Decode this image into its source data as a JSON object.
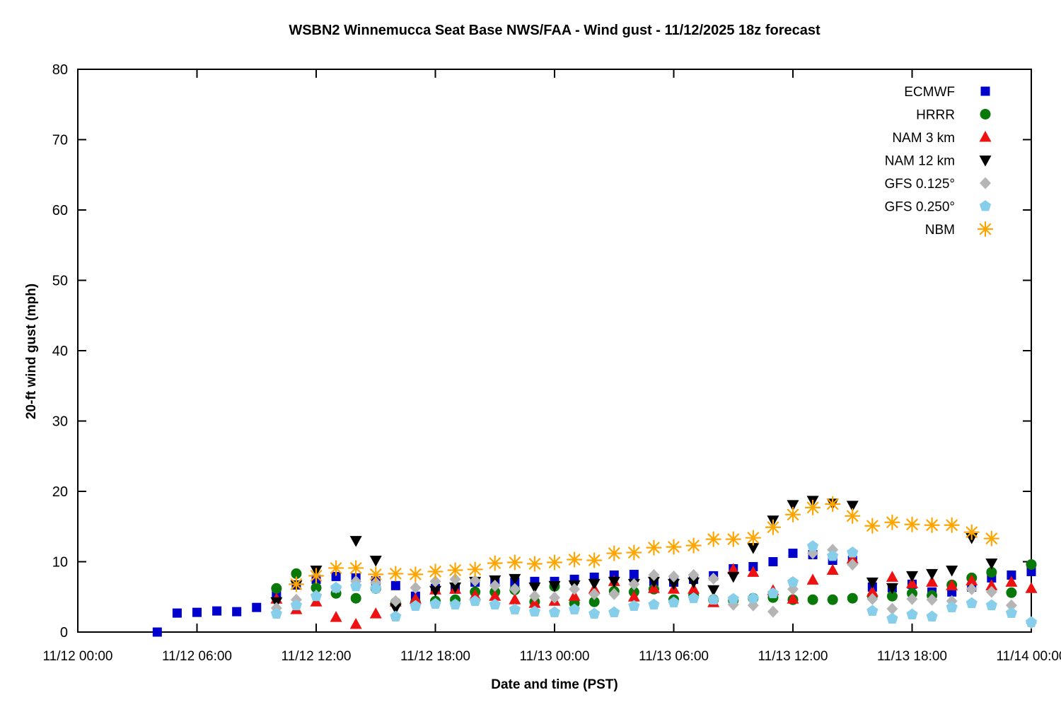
{
  "chart": {
    "title": "WSBN2 Winnemucca Seat Base NWS/FAA - Wind gust - 11/12/2025 18z forecast",
    "xlabel": "Date and time (PST)",
    "ylabel": "20-ft wind gust (mph)"
  },
  "chart_data": {
    "type": "scatter",
    "title": "WSBN2 Winnemucca Seat Base NWS/FAA - Wind gust - 11/12/2025 18z forecast",
    "xlabel": "Date and time (PST)",
    "ylabel": "20-ft wind gust (mph)",
    "x_unit_hours_since": "11/12 00:00 PST",
    "xlim": [
      0,
      48
    ],
    "ylim": [
      0,
      80
    ],
    "grid": false,
    "legend_position": "top-right-inside",
    "x_ticks": [
      {
        "hour": 0,
        "label": "11/12 00:00"
      },
      {
        "hour": 6,
        "label": "11/12 06:00"
      },
      {
        "hour": 12,
        "label": "11/12 12:00"
      },
      {
        "hour": 18,
        "label": "11/12 18:00"
      },
      {
        "hour": 24,
        "label": "11/13 00:00"
      },
      {
        "hour": 30,
        "label": "11/13 06:00"
      },
      {
        "hour": 36,
        "label": "11/13 12:00"
      },
      {
        "hour": 42,
        "label": "11/13 18:00"
      },
      {
        "hour": 48,
        "label": "11/14 00:00"
      }
    ],
    "y_ticks": [
      0,
      10,
      20,
      30,
      40,
      50,
      60,
      70,
      80
    ],
    "series": [
      {
        "name": "ECMWF",
        "marker": "square",
        "color": "#0000cc",
        "points": [
          [
            4,
            0
          ],
          [
            5,
            2.7
          ],
          [
            6,
            2.8
          ],
          [
            7,
            3.0
          ],
          [
            8,
            2.9
          ],
          [
            9,
            3.5
          ],
          [
            10,
            5.2
          ],
          [
            11,
            6.7
          ],
          [
            12,
            7.5
          ],
          [
            13,
            7.9
          ],
          [
            14,
            7.7
          ],
          [
            15,
            7.3
          ],
          [
            16,
            6.6
          ],
          [
            17,
            5.1
          ],
          [
            18,
            6.2
          ],
          [
            19,
            6.1
          ],
          [
            20,
            7.1
          ],
          [
            21,
            7.3
          ],
          [
            22,
            7.1
          ],
          [
            23,
            7.2
          ],
          [
            24,
            7.2
          ],
          [
            25,
            7.5
          ],
          [
            26,
            7.8
          ],
          [
            27,
            8.1
          ],
          [
            28,
            8.2
          ],
          [
            29,
            7.2
          ],
          [
            30,
            7.1
          ],
          [
            31,
            7.5
          ],
          [
            32,
            8.0
          ],
          [
            33,
            9.0
          ],
          [
            34,
            9.3
          ],
          [
            35,
            10.0
          ],
          [
            36,
            11.2
          ],
          [
            37,
            11.0
          ],
          [
            38,
            10.2
          ],
          [
            39,
            10.2
          ],
          [
            40,
            6.4
          ],
          [
            41,
            6.3
          ],
          [
            42,
            6.8
          ],
          [
            43,
            5.7
          ],
          [
            44,
            5.7
          ],
          [
            45,
            6.4
          ],
          [
            46,
            7.7
          ],
          [
            47,
            8.1
          ],
          [
            48,
            8.6
          ]
        ]
      },
      {
        "name": "HRRR",
        "marker": "circle",
        "color": "#087808",
        "points": [
          [
            10,
            6.2
          ],
          [
            11,
            8.3
          ],
          [
            12,
            6.3
          ],
          [
            13,
            5.5
          ],
          [
            14,
            4.8
          ],
          [
            15,
            6.2
          ],
          [
            16,
            4.2
          ],
          [
            17,
            4.2
          ],
          [
            18,
            4.4
          ],
          [
            19,
            4.6
          ],
          [
            20,
            5.7
          ],
          [
            21,
            5.7
          ],
          [
            22,
            6.0
          ],
          [
            23,
            4.3
          ],
          [
            24,
            6.5
          ],
          [
            25,
            4.1
          ],
          [
            26,
            4.3
          ],
          [
            27,
            5.8
          ],
          [
            28,
            5.7
          ],
          [
            29,
            6.1
          ],
          [
            30,
            4.6
          ],
          [
            31,
            5.2
          ],
          [
            32,
            4.6
          ],
          [
            33,
            4.5
          ],
          [
            34,
            4.8
          ],
          [
            35,
            4.9
          ],
          [
            36,
            4.6
          ],
          [
            37,
            4.6
          ],
          [
            38,
            4.6
          ],
          [
            39,
            4.8
          ],
          [
            40,
            5.1
          ],
          [
            41,
            5.1
          ],
          [
            42,
            5.5
          ],
          [
            43,
            5.2
          ],
          [
            44,
            6.7
          ],
          [
            45,
            7.7
          ],
          [
            46,
            8.5
          ],
          [
            47,
            5.6
          ],
          [
            48,
            9.6
          ]
        ]
      },
      {
        "name": "NAM 3 km",
        "marker": "triangle-up",
        "color": "#ee1111",
        "points": [
          [
            10,
            4.7
          ],
          [
            11,
            3.2
          ],
          [
            12,
            4.3
          ],
          [
            13,
            2.1
          ],
          [
            14,
            1.1
          ],
          [
            15,
            2.6
          ],
          [
            16,
            4.3
          ],
          [
            17,
            4.7
          ],
          [
            18,
            6.0
          ],
          [
            19,
            6.1
          ],
          [
            20,
            5.2
          ],
          [
            21,
            5.1
          ],
          [
            22,
            4.6
          ],
          [
            23,
            4.1
          ],
          [
            24,
            4.4
          ],
          [
            25,
            5.1
          ],
          [
            26,
            6.1
          ],
          [
            27,
            7.2
          ],
          [
            28,
            5.0
          ],
          [
            29,
            6.2
          ],
          [
            30,
            6.1
          ],
          [
            31,
            6.1
          ],
          [
            32,
            4.2
          ],
          [
            33,
            8.9
          ],
          [
            34,
            8.5
          ],
          [
            35,
            5.9
          ],
          [
            36,
            4.7
          ],
          [
            37,
            7.4
          ],
          [
            38,
            8.8
          ],
          [
            39,
            10.4
          ],
          [
            40,
            5.7
          ],
          [
            41,
            7.8
          ],
          [
            42,
            6.9
          ],
          [
            43,
            7.1
          ],
          [
            44,
            6.6
          ],
          [
            45,
            7.3
          ],
          [
            46,
            6.6
          ],
          [
            47,
            7.1
          ],
          [
            48,
            6.2
          ]
        ]
      },
      {
        "name": "NAM 12 km",
        "marker": "triangle-down",
        "color": "#000000",
        "points": [
          [
            10,
            4.3
          ],
          [
            11,
            6.7
          ],
          [
            12,
            8.8
          ],
          [
            14,
            13.0
          ],
          [
            15,
            10.2
          ],
          [
            16,
            3.4
          ],
          [
            18,
            5.9
          ],
          [
            19,
            6.4
          ],
          [
            20,
            7.2
          ],
          [
            21,
            7.4
          ],
          [
            22,
            7.6
          ],
          [
            23,
            6.4
          ],
          [
            24,
            6.6
          ],
          [
            25,
            6.7
          ],
          [
            26,
            6.9
          ],
          [
            27,
            7.2
          ],
          [
            28,
            6.9
          ],
          [
            29,
            7.2
          ],
          [
            30,
            6.9
          ],
          [
            31,
            7.1
          ],
          [
            32,
            6.0
          ],
          [
            33,
            7.9
          ],
          [
            34,
            12.0
          ],
          [
            35,
            15.9
          ],
          [
            36,
            18.1
          ],
          [
            37,
            18.7
          ],
          [
            38,
            18.3
          ],
          [
            39,
            18.0
          ],
          [
            40,
            7.1
          ],
          [
            41,
            6.3
          ],
          [
            42,
            8.0
          ],
          [
            43,
            8.3
          ],
          [
            44,
            8.8
          ],
          [
            45,
            13.4
          ],
          [
            46,
            9.8
          ]
        ]
      },
      {
        "name": "GFS 0.125°",
        "marker": "diamond",
        "color": "#b5b5b5",
        "points": [
          [
            10,
            3.4
          ],
          [
            11,
            4.6
          ],
          [
            12,
            5.2
          ],
          [
            13,
            6.3
          ],
          [
            14,
            7.2
          ],
          [
            15,
            7.0
          ],
          [
            16,
            4.4
          ],
          [
            17,
            6.3
          ],
          [
            18,
            7.2
          ],
          [
            19,
            7.5
          ],
          [
            20,
            7.3
          ],
          [
            21,
            6.6
          ],
          [
            22,
            6.1
          ],
          [
            23,
            5.1
          ],
          [
            24,
            4.9
          ],
          [
            25,
            6.1
          ],
          [
            26,
            5.4
          ],
          [
            27,
            5.4
          ],
          [
            28,
            6.8
          ],
          [
            29,
            8.1
          ],
          [
            30,
            7.9
          ],
          [
            31,
            8.1
          ],
          [
            32,
            7.6
          ],
          [
            33,
            3.9
          ],
          [
            34,
            3.8
          ],
          [
            35,
            2.9
          ],
          [
            36,
            6.1
          ],
          [
            37,
            11.2
          ],
          [
            38,
            11.7
          ],
          [
            39,
            9.6
          ],
          [
            40,
            4.7
          ],
          [
            41,
            3.3
          ],
          [
            42,
            4.7
          ],
          [
            43,
            4.6
          ],
          [
            44,
            4.4
          ],
          [
            45,
            6.1
          ],
          [
            46,
            5.7
          ],
          [
            47,
            3.8
          ],
          [
            48,
            1.3
          ]
        ]
      },
      {
        "name": "GFS 0.250°",
        "marker": "pentagon",
        "color": "#87ceeb",
        "points": [
          [
            10,
            2.6
          ],
          [
            11,
            3.8
          ],
          [
            12,
            5.1
          ],
          [
            13,
            6.3
          ],
          [
            14,
            6.5
          ],
          [
            15,
            6.2
          ],
          [
            16,
            2.2
          ],
          [
            17,
            3.7
          ],
          [
            18,
            4.0
          ],
          [
            19,
            3.9
          ],
          [
            20,
            4.4
          ],
          [
            21,
            3.9
          ],
          [
            22,
            3.2
          ],
          [
            23,
            2.9
          ],
          [
            24,
            2.8
          ],
          [
            25,
            3.2
          ],
          [
            26,
            2.6
          ],
          [
            27,
            2.8
          ],
          [
            28,
            3.7
          ],
          [
            29,
            3.9
          ],
          [
            30,
            4.2
          ],
          [
            31,
            4.8
          ],
          [
            32,
            4.6
          ],
          [
            33,
            4.7
          ],
          [
            34,
            4.8
          ],
          [
            35,
            5.5
          ],
          [
            36,
            7.1
          ],
          [
            37,
            12.2
          ],
          [
            38,
            10.8
          ],
          [
            39,
            11.3
          ],
          [
            40,
            3.0
          ],
          [
            41,
            1.9
          ],
          [
            42,
            2.5
          ],
          [
            43,
            2.2
          ],
          [
            44,
            3.5
          ],
          [
            45,
            4.1
          ],
          [
            46,
            3.8
          ],
          [
            47,
            2.7
          ],
          [
            48,
            1.4
          ]
        ]
      },
      {
        "name": "NBM",
        "marker": "asterisk",
        "color": "#ffa500",
        "points": [
          [
            11,
            6.8
          ],
          [
            12,
            8.0
          ],
          [
            13,
            9.1
          ],
          [
            14,
            9.1
          ],
          [
            15,
            8.2
          ],
          [
            16,
            8.3
          ],
          [
            17,
            8.2
          ],
          [
            18,
            8.6
          ],
          [
            19,
            8.8
          ],
          [
            20,
            8.9
          ],
          [
            21,
            9.8
          ],
          [
            22,
            9.9
          ],
          [
            23,
            9.7
          ],
          [
            24,
            9.9
          ],
          [
            25,
            10.3
          ],
          [
            26,
            10.2
          ],
          [
            27,
            11.2
          ],
          [
            28,
            11.3
          ],
          [
            29,
            12.0
          ],
          [
            30,
            12.1
          ],
          [
            31,
            12.3
          ],
          [
            32,
            13.2
          ],
          [
            33,
            13.2
          ],
          [
            34,
            13.4
          ],
          [
            35,
            14.9
          ],
          [
            36,
            16.7
          ],
          [
            37,
            17.7
          ],
          [
            38,
            18.2
          ],
          [
            39,
            16.5
          ],
          [
            40,
            15.1
          ],
          [
            41,
            15.6
          ],
          [
            42,
            15.3
          ],
          [
            43,
            15.2
          ],
          [
            44,
            15.2
          ],
          [
            45,
            14.2
          ],
          [
            46,
            13.3
          ]
        ]
      }
    ]
  }
}
